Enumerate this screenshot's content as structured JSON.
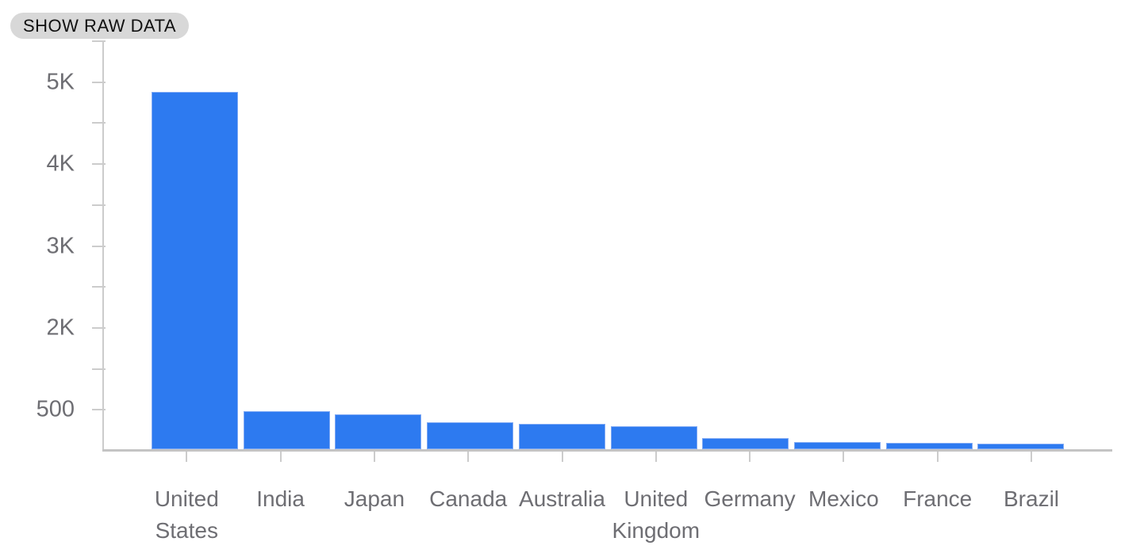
{
  "toolbar": {
    "show_raw_data_label": "SHOW RAW DATA"
  },
  "chart_data": {
    "type": "bar",
    "title": "",
    "xlabel": "",
    "ylabel": "",
    "categories": [
      "United States",
      "India",
      "Japan",
      "Canada",
      "Australia",
      "United Kingdom",
      "Germany",
      "Mexico",
      "France",
      "Brazil"
    ],
    "values": [
      4880,
      480,
      440,
      340,
      320,
      290,
      140,
      90,
      80,
      70
    ],
    "y_tick_labels": [
      "5K",
      "4K",
      "3K",
      "2K",
      "500"
    ],
    "y_tick_values": [
      5000,
      4000,
      3000,
      2000,
      500
    ],
    "ylim": [
      0,
      5300
    ],
    "grid": false,
    "legend": "none",
    "bar_color": "#2d7af0",
    "bar_edge_color": "#7fa9f4",
    "axis_color": "#cccccc",
    "label_color": "#6e6e73"
  }
}
